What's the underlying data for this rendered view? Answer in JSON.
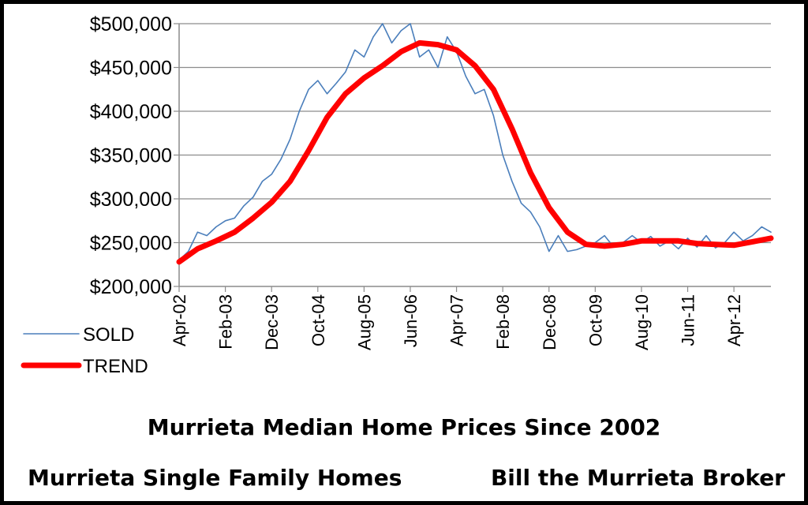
{
  "footer": {
    "left": "Murrieta Single Family Homes",
    "right": "Bill the Murrieta Broker"
  },
  "chart_data": {
    "type": "line",
    "title": "Murrieta Median Home Prices Since 2002",
    "xlabel": "",
    "ylabel": "",
    "ylim": [
      200000,
      500000
    ],
    "y_ticks": [
      "$200,000",
      "$250,000",
      "$300,000",
      "$350,000",
      "$400,000",
      "$450,000",
      "$500,000"
    ],
    "x_ticks": [
      "Apr-02",
      "Feb-03",
      "Dec-03",
      "Oct-04",
      "Aug-05",
      "Jun-06",
      "Apr-07",
      "Feb-08",
      "Dec-08",
      "Oct-09",
      "Aug-10",
      "Jun-11",
      "Apr-12"
    ],
    "x_range": [
      "2002-04",
      "2012-12"
    ],
    "grid": "horizontal",
    "legend_position": "bottom-left",
    "series": [
      {
        "name": "SOLD",
        "color": "#4a7ebb",
        "points": [
          [
            "2002-04",
            230000
          ],
          [
            "2002-06",
            240000
          ],
          [
            "2002-08",
            262000
          ],
          [
            "2002-10",
            258000
          ],
          [
            "2002-12",
            268000
          ],
          [
            "2003-02",
            275000
          ],
          [
            "2003-04",
            278000
          ],
          [
            "2003-06",
            292000
          ],
          [
            "2003-08",
            302000
          ],
          [
            "2003-10",
            320000
          ],
          [
            "2003-12",
            328000
          ],
          [
            "2004-02",
            345000
          ],
          [
            "2004-04",
            368000
          ],
          [
            "2004-06",
            400000
          ],
          [
            "2004-08",
            425000
          ],
          [
            "2004-10",
            435000
          ],
          [
            "2004-12",
            420000
          ],
          [
            "2005-02",
            432000
          ],
          [
            "2005-04",
            445000
          ],
          [
            "2005-06",
            470000
          ],
          [
            "2005-08",
            462000
          ],
          [
            "2005-10",
            485000
          ],
          [
            "2005-12",
            500000
          ],
          [
            "2006-02",
            478000
          ],
          [
            "2006-04",
            492000
          ],
          [
            "2006-06",
            500000
          ],
          [
            "2006-08",
            462000
          ],
          [
            "2006-10",
            470000
          ],
          [
            "2006-12",
            450000
          ],
          [
            "2007-02",
            485000
          ],
          [
            "2007-04",
            468000
          ],
          [
            "2007-06",
            440000
          ],
          [
            "2007-08",
            420000
          ],
          [
            "2007-10",
            425000
          ],
          [
            "2007-12",
            395000
          ],
          [
            "2008-02",
            350000
          ],
          [
            "2008-04",
            320000
          ],
          [
            "2008-06",
            295000
          ],
          [
            "2008-08",
            285000
          ],
          [
            "2008-10",
            268000
          ],
          [
            "2008-12",
            240000
          ],
          [
            "2009-02",
            258000
          ],
          [
            "2009-04",
            240000
          ],
          [
            "2009-06",
            242000
          ],
          [
            "2009-08",
            246000
          ],
          [
            "2009-10",
            250000
          ],
          [
            "2009-12",
            258000
          ],
          [
            "2010-02",
            245000
          ],
          [
            "2010-04",
            250000
          ],
          [
            "2010-06",
            258000
          ],
          [
            "2010-08",
            250000
          ],
          [
            "2010-10",
            257000
          ],
          [
            "2010-12",
            246000
          ],
          [
            "2011-02",
            252000
          ],
          [
            "2011-04",
            243000
          ],
          [
            "2011-06",
            255000
          ],
          [
            "2011-08",
            245000
          ],
          [
            "2011-10",
            258000
          ],
          [
            "2011-12",
            244000
          ],
          [
            "2012-02",
            250000
          ],
          [
            "2012-04",
            262000
          ],
          [
            "2012-06",
            252000
          ],
          [
            "2012-08",
            258000
          ],
          [
            "2012-10",
            268000
          ],
          [
            "2012-12",
            262000
          ]
        ]
      },
      {
        "name": "TREND",
        "color": "#ff0000",
        "points": [
          [
            "2002-04",
            228000
          ],
          [
            "2002-08",
            243000
          ],
          [
            "2002-12",
            252000
          ],
          [
            "2003-04",
            262000
          ],
          [
            "2003-08",
            278000
          ],
          [
            "2003-12",
            296000
          ],
          [
            "2004-04",
            320000
          ],
          [
            "2004-08",
            355000
          ],
          [
            "2004-12",
            393000
          ],
          [
            "2005-04",
            420000
          ],
          [
            "2005-08",
            438000
          ],
          [
            "2005-12",
            452000
          ],
          [
            "2006-04",
            468000
          ],
          [
            "2006-08",
            478000
          ],
          [
            "2006-12",
            476000
          ],
          [
            "2007-04",
            470000
          ],
          [
            "2007-08",
            452000
          ],
          [
            "2007-12",
            425000
          ],
          [
            "2008-04",
            380000
          ],
          [
            "2008-08",
            330000
          ],
          [
            "2008-12",
            290000
          ],
          [
            "2009-04",
            262000
          ],
          [
            "2009-08",
            248000
          ],
          [
            "2009-12",
            246000
          ],
          [
            "2010-04",
            248000
          ],
          [
            "2010-08",
            252000
          ],
          [
            "2010-12",
            252000
          ],
          [
            "2011-04",
            252000
          ],
          [
            "2011-08",
            249000
          ],
          [
            "2011-12",
            248000
          ],
          [
            "2012-04",
            247000
          ],
          [
            "2012-08",
            251000
          ],
          [
            "2012-12",
            255000
          ]
        ]
      }
    ]
  }
}
